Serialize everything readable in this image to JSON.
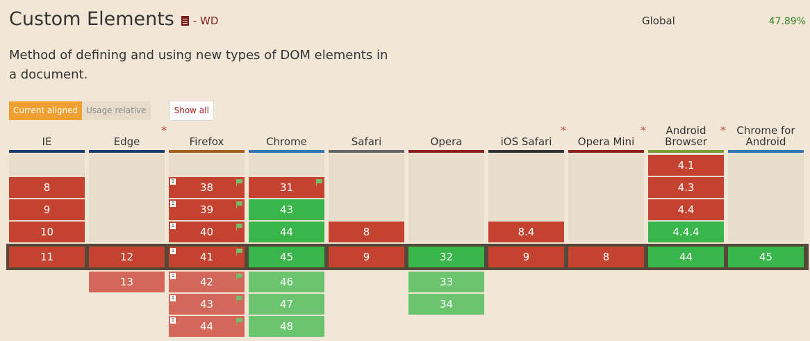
{
  "header": {
    "title": "Custom Elements",
    "title_icon": "document-icon",
    "status": "- WD",
    "global_label": "Global",
    "global_value": "47.89%",
    "description": "Method of defining and using new types of DOM elements in a document."
  },
  "tabs": {
    "current_aligned": "Current aligned",
    "usage_relative": "Usage relative",
    "show_all": "Show all"
  },
  "colors": {
    "unsupported": "#c44230",
    "unsupported_future": "#d4675a",
    "supported": "#39b54a",
    "supported_future": "#6ac46e",
    "accent": "#f0a030"
  },
  "browsers": [
    {
      "name": "IE",
      "line1": "IE",
      "star": false,
      "border": "#1c3d6b",
      "past": [
        "",
        "8",
        "9",
        "10"
      ],
      "current": "11",
      "future": []
    },
    {
      "name": "Edge",
      "line1": "Edge",
      "star": true,
      "border": "#1c3d6b",
      "past": [],
      "current": "12",
      "future": [
        "13"
      ]
    },
    {
      "name": "Firefox",
      "line1": "Firefox",
      "star": false,
      "border": "#a45f1f",
      "past": [
        "",
        "38",
        "39",
        "40"
      ],
      "current": "41",
      "future": [
        "42",
        "43",
        "44"
      ]
    },
    {
      "name": "Chrome",
      "line1": "Chrome",
      "star": false,
      "border": "#3573b1",
      "past": [
        "",
        "31",
        "43",
        "44"
      ],
      "current": "45",
      "future": [
        "46",
        "47",
        "48"
      ]
    },
    {
      "name": "Safari",
      "line1": "Safari",
      "star": false,
      "border": "#666666",
      "past": [
        "",
        "",
        "",
        "8"
      ],
      "current": "9",
      "future": []
    },
    {
      "name": "Opera",
      "line1": "Opera",
      "star": false,
      "border": "#8e1f1f",
      "past": [],
      "current": "32",
      "future": [
        "33",
        "34"
      ]
    },
    {
      "name": "iOS Safari",
      "line1": "iOS Safari",
      "star": true,
      "border": "#333333",
      "past": [
        "",
        "",
        "",
        "8.4"
      ],
      "current": "9",
      "future": []
    },
    {
      "name": "Opera Mini",
      "line1": "Opera Mini",
      "star": true,
      "border": "#8e1f1f",
      "past": [],
      "current": "8",
      "future": []
    },
    {
      "name": "Android Browser",
      "line1": "Android",
      "line2": "Browser",
      "star": true,
      "border": "#7b9b3a",
      "past": [
        "4.1",
        "4.3",
        "4.4",
        "4.4.4"
      ],
      "current": "44",
      "future": []
    },
    {
      "name": "Chrome for Android",
      "line1": "Chrome for",
      "line2": "Android",
      "star": false,
      "border": "#3573b1",
      "past": [],
      "current": "45",
      "future": []
    }
  ]
}
